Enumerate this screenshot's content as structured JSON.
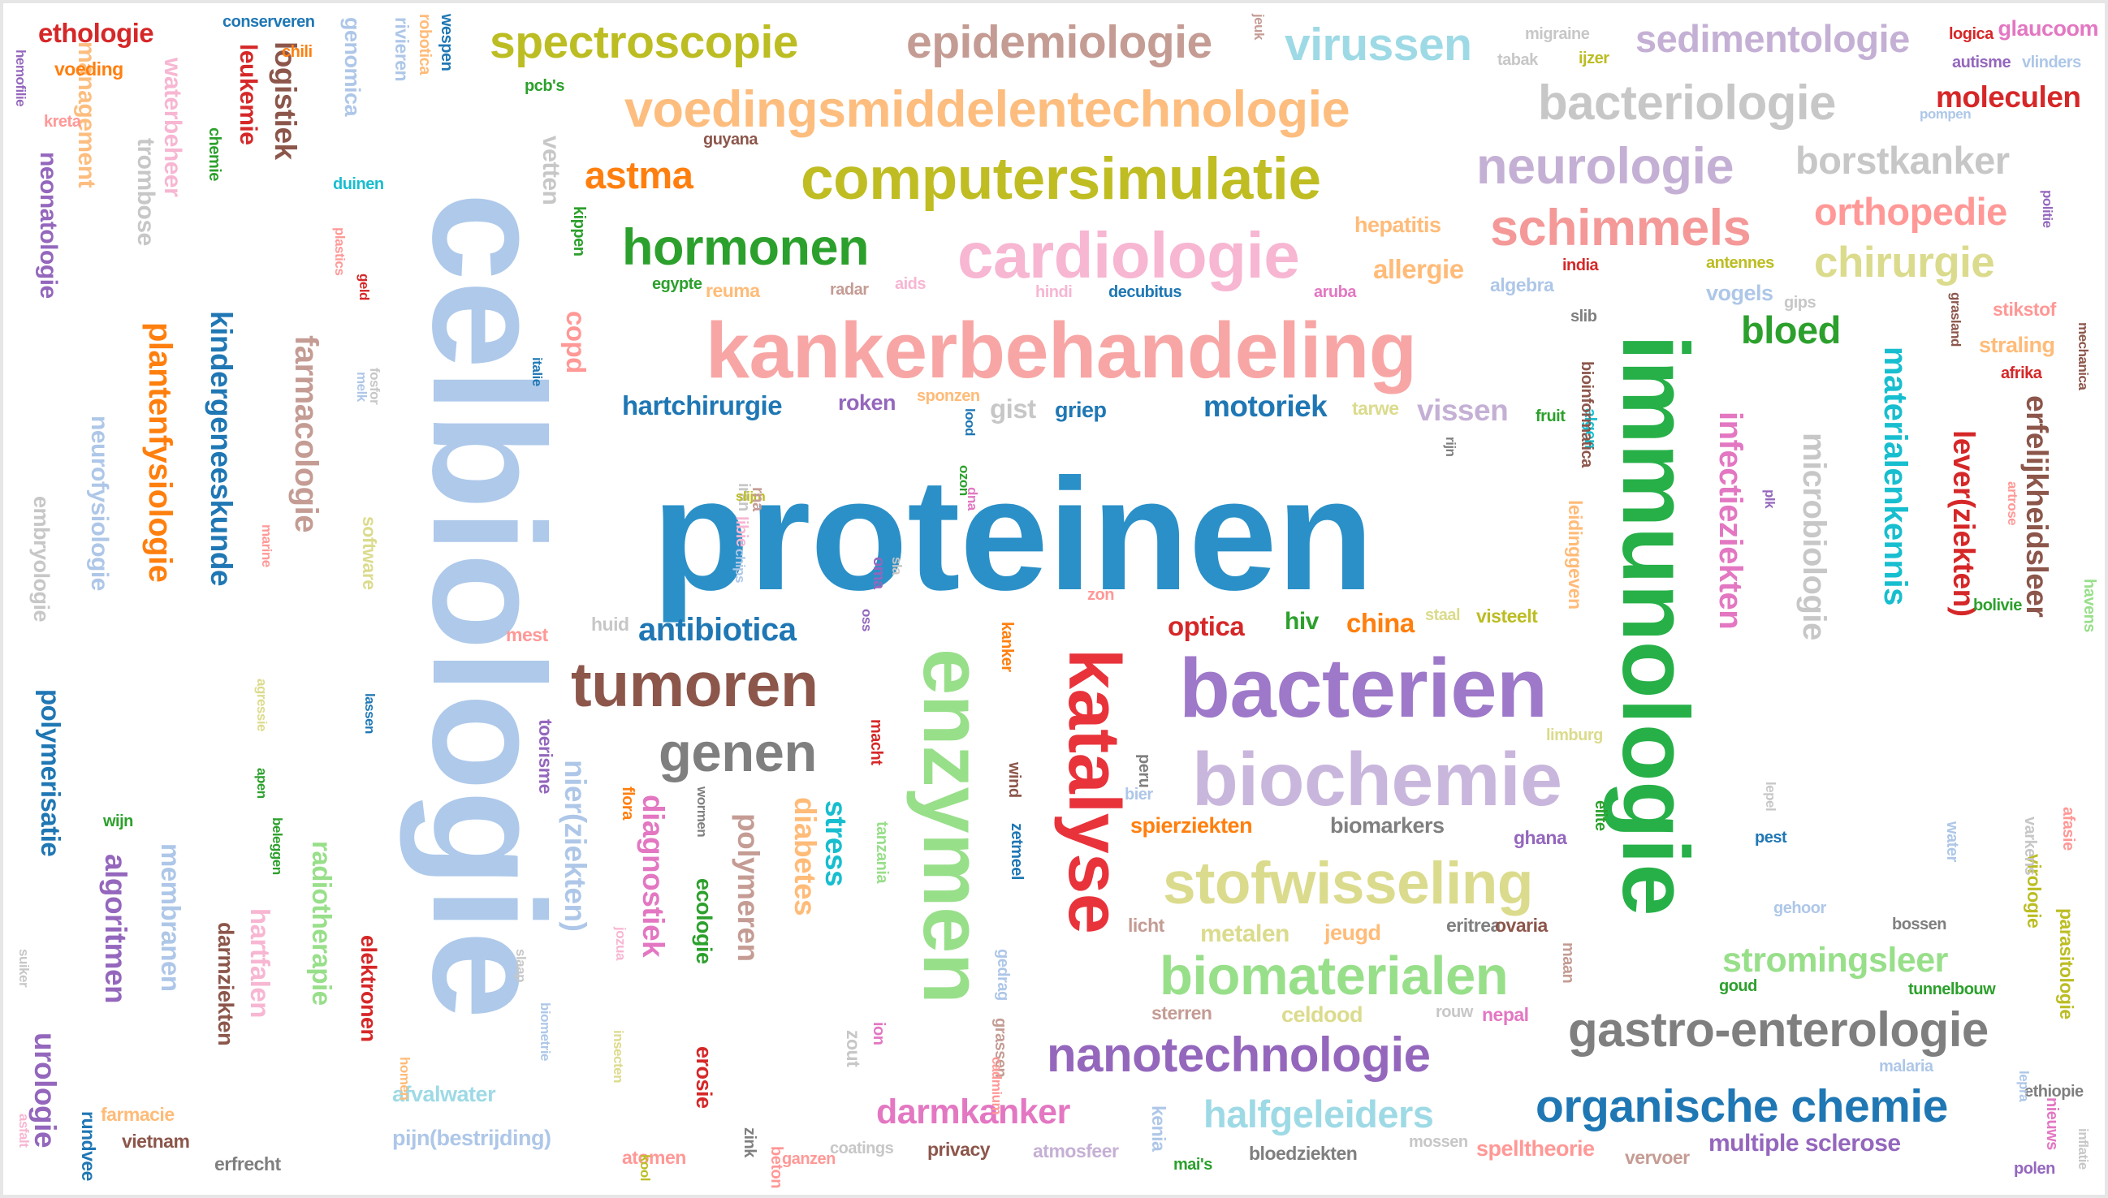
{
  "title": "",
  "words": [
    {
      "text": "proteinen",
      "color": "#2b90c8"
    },
    {
      "text": "celbiologie",
      "color": "#aec9ea"
    },
    {
      "text": "kankerbehandeling",
      "color": "#f7a6a5"
    },
    {
      "text": "immunologie",
      "color": "#27b048"
    },
    {
      "text": "enzymen",
      "color": "#98df8a"
    },
    {
      "text": "bacterien",
      "color": "#9e78c9"
    },
    {
      "text": "biochemie",
      "color": "#c9b6dc"
    },
    {
      "text": "katalyse",
      "color": "#e8333b"
    },
    {
      "text": "computersimulatie",
      "color": "#bfbd22"
    },
    {
      "text": "voedingsmiddelentechnologie",
      "color": "#fdbd7e"
    },
    {
      "text": "cardiologie",
      "color": "#f7b6d2"
    },
    {
      "text": "tumoren",
      "color": "#8c564b"
    },
    {
      "text": "stofwisseling",
      "color": "#dbdb8d"
    },
    {
      "text": "biomaterialen",
      "color": "#98df8a"
    },
    {
      "text": "nanotechnologie",
      "color": "#9467bd"
    },
    {
      "text": "gastro-enterologie",
      "color": "#7f7f7f"
    },
    {
      "text": "organische chemie",
      "color": "#1f77b4"
    },
    {
      "text": "genen",
      "color": "#7f7f7f"
    },
    {
      "text": "hormonen",
      "color": "#2ca02c"
    },
    {
      "text": "schimmels",
      "color": "#f49898"
    },
    {
      "text": "neurologie",
      "color": "#c5b0d5"
    },
    {
      "text": "bacteriologie",
      "color": "#c7c7c7"
    },
    {
      "text": "spectroscopie",
      "color": "#bcbd22"
    },
    {
      "text": "epidemiologie",
      "color": "#c49c94"
    },
    {
      "text": "virussen",
      "color": "#9edae5"
    },
    {
      "text": "sedimentologie",
      "color": "#c5b0d5"
    },
    {
      "text": "borstkanker",
      "color": "#c7c7c7"
    },
    {
      "text": "orthopedie",
      "color": "#ff9896"
    },
    {
      "text": "chirurgie",
      "color": "#dbdb8d"
    },
    {
      "text": "bloed",
      "color": "#2ca02c"
    },
    {
      "text": "moleculen",
      "color": "#d62728"
    },
    {
      "text": "astma",
      "color": "#ff7f0e"
    },
    {
      "text": "kindergeneeskunde",
      "color": "#1f77b4"
    },
    {
      "text": "plantenfysiologie",
      "color": "#ff7f0e"
    },
    {
      "text": "farmacologie",
      "color": "#c49c94"
    },
    {
      "text": "logistiek",
      "color": "#8c564b"
    },
    {
      "text": "leukemie",
      "color": "#d62728"
    },
    {
      "text": "neurofysiologie",
      "color": "#aec7e8"
    },
    {
      "text": "neonatologie",
      "color": "#9467bd"
    },
    {
      "text": "management",
      "color": "#fdbd7e"
    },
    {
      "text": "waterbeheer",
      "color": "#f7b6d2"
    },
    {
      "text": "materialenkennis",
      "color": "#17becf"
    },
    {
      "text": "infectieziekten",
      "color": "#e377c2"
    },
    {
      "text": "microbiologie",
      "color": "#c7c7c7"
    },
    {
      "text": "lever(ziekten)",
      "color": "#d62728"
    },
    {
      "text": "erfelijkheidsleer",
      "color": "#8c564b"
    },
    {
      "text": "nier(ziekten)",
      "color": "#aec7e8"
    },
    {
      "text": "diagnostiek",
      "color": "#e377c2"
    },
    {
      "text": "polymeren",
      "color": "#c49c94"
    },
    {
      "text": "diabetes",
      "color": "#ffbb78"
    },
    {
      "text": "stress",
      "color": "#17becf"
    },
    {
      "text": "copd",
      "color": "#ff9896"
    },
    {
      "text": "hartchirurgie",
      "color": "#1f77b4"
    },
    {
      "text": "antibiotica",
      "color": "#1f77b4"
    },
    {
      "text": "optica",
      "color": "#d62728"
    },
    {
      "text": "china",
      "color": "#ff7f0e"
    },
    {
      "text": "hiv",
      "color": "#2ca02c"
    },
    {
      "text": "motoriek",
      "color": "#1f77b4"
    },
    {
      "text": "vissen",
      "color": "#c5b0d5"
    },
    {
      "text": "gist",
      "color": "#c7c7c7"
    },
    {
      "text": "griep",
      "color": "#1f77b4"
    },
    {
      "text": "roken",
      "color": "#9467bd"
    },
    {
      "text": "tarwe",
      "color": "#dbdb8d"
    },
    {
      "text": "allergie",
      "color": "#ffbb78"
    },
    {
      "text": "hepatitis",
      "color": "#ffbb78"
    },
    {
      "text": "algebra",
      "color": "#aec7e8"
    },
    {
      "text": "vogels",
      "color": "#aec7e8"
    },
    {
      "text": "reuma",
      "color": "#ffbb78"
    },
    {
      "text": "radar",
      "color": "#c49c94"
    },
    {
      "text": "stikstof",
      "color": "#ff9896"
    },
    {
      "text": "straling",
      "color": "#ffbb78"
    },
    {
      "text": "afrika",
      "color": "#d62728"
    },
    {
      "text": "spierziekten",
      "color": "#ff7f0e"
    },
    {
      "text": "biomarkers",
      "color": "#7f7f7f"
    },
    {
      "text": "ghana",
      "color": "#9467bd"
    },
    {
      "text": "metalen",
      "color": "#dbdb8d"
    },
    {
      "text": "darmkanker",
      "color": "#e377c2"
    },
    {
      "text": "halfgeleiders",
      "color": "#9edae5"
    },
    {
      "text": "stromingsleer",
      "color": "#98df8a"
    },
    {
      "text": "multiple sclerose",
      "color": "#9467bd"
    },
    {
      "text": "bloedziekten",
      "color": "#7f7f7f"
    },
    {
      "text": "privacy",
      "color": "#8c564b"
    },
    {
      "text": "atmosfeer",
      "color": "#c5b0d5"
    },
    {
      "text": "pijn(bestrijding)",
      "color": "#aec7e8"
    },
    {
      "text": "afvalwater",
      "color": "#9edae5"
    },
    {
      "text": "spelltheorie",
      "color": "#ff9896"
    },
    {
      "text": "polymerisatie",
      "color": "#1f77b4"
    },
    {
      "text": "algoritmen",
      "color": "#9467bd"
    },
    {
      "text": "membranen",
      "color": "#aec7e8"
    },
    {
      "text": "urologie",
      "color": "#9467bd"
    },
    {
      "text": "hartfalen",
      "color": "#f7b6d2"
    },
    {
      "text": "radiotherapie",
      "color": "#98df8a"
    },
    {
      "text": "elektronen",
      "color": "#d62728"
    },
    {
      "text": "darmziekten",
      "color": "#8c564b"
    },
    {
      "text": "embryologie",
      "color": "#c7c7c7"
    },
    {
      "text": "ethologie",
      "color": "#d62728"
    },
    {
      "text": "voeding",
      "color": "#ff7f0e"
    },
    {
      "text": "glaucoom",
      "color": "#e377c2"
    },
    {
      "text": "logica",
      "color": "#d62728"
    },
    {
      "text": "autisme",
      "color": "#9467bd"
    },
    {
      "text": "migraine",
      "color": "#c7c7c7"
    },
    {
      "text": "ijzer",
      "color": "#bcbd22"
    },
    {
      "text": "celdood",
      "color": "#dbdb8d"
    },
    {
      "text": "sterren",
      "color": "#c49c94"
    },
    {
      "text": "nepal",
      "color": "#e377c2"
    },
    {
      "text": "parasitologie",
      "color": "#bcbd22"
    },
    {
      "text": "virologie",
      "color": "#bcbd22"
    },
    {
      "text": "tunnelbouw",
      "color": "#2ca02c"
    },
    {
      "text": "bossen",
      "color": "#7f7f7f"
    },
    {
      "text": "gehoor",
      "color": "#aec7e8"
    },
    {
      "text": "malaria",
      "color": "#aec7e8"
    },
    {
      "text": "atomen",
      "color": "#ff9896"
    },
    {
      "text": "vervoer",
      "color": "#c49c94"
    },
    {
      "text": "zetmeel",
      "color": "#1f77b4"
    },
    {
      "text": "wind",
      "color": "#8c564b"
    },
    {
      "text": "kanker",
      "color": "#ff7f0e"
    },
    {
      "text": "bier",
      "color": "#aec7e8"
    },
    {
      "text": "peru",
      "color": "#7f7f7f"
    },
    {
      "text": "visteelt",
      "color": "#bcbd22"
    },
    {
      "text": "staal",
      "color": "#dbdb8d"
    },
    {
      "text": "vetten",
      "color": "#c7c7c7"
    },
    {
      "text": "trombose",
      "color": "#c7c7c7"
    },
    {
      "text": "genomica",
      "color": "#aec7e8"
    },
    {
      "text": "rivieren",
      "color": "#aec7e8"
    },
    {
      "text": "conserveren",
      "color": "#1f77b4"
    },
    {
      "text": "chili",
      "color": "#ff7f0e"
    },
    {
      "text": "wespen",
      "color": "#1f77b4"
    },
    {
      "text": "robotica",
      "color": "#ffbb78"
    },
    {
      "text": "pcb's",
      "color": "#2ca02c"
    },
    {
      "text": "tabak",
      "color": "#c7c7c7"
    },
    {
      "text": "vlinders",
      "color": "#aec7e8"
    },
    {
      "text": "pompen",
      "color": "#aec7e8"
    },
    {
      "text": "politie",
      "color": "#9467bd"
    },
    {
      "text": "antennes",
      "color": "#bcbd22"
    },
    {
      "text": "gips",
      "color": "#c7c7c7"
    },
    {
      "text": "india",
      "color": "#d62728"
    },
    {
      "text": "aruba",
      "color": "#e377c2"
    },
    {
      "text": "decubitus",
      "color": "#1f77b4"
    },
    {
      "text": "hindi",
      "color": "#f7b6d2"
    },
    {
      "text": "aids",
      "color": "#f7b6d2"
    },
    {
      "text": "egypte",
      "color": "#2ca02c"
    },
    {
      "text": "kippen",
      "color": "#2ca02c"
    },
    {
      "text": "duinen",
      "color": "#17becf"
    },
    {
      "text": "chemie",
      "color": "#2ca02c"
    },
    {
      "text": "hemofilie",
      "color": "#9467bd"
    },
    {
      "text": "kreta",
      "color": "#ff9896"
    },
    {
      "text": "guyana",
      "color": "#8c564b"
    },
    {
      "text": "slib",
      "color": "#7f7f7f"
    },
    {
      "text": "fruit",
      "color": "#2ca02c"
    },
    {
      "text": "algen",
      "color": "#17becf"
    },
    {
      "text": "mechanica",
      "color": "#8c564b"
    },
    {
      "text": "grasland",
      "color": "#8c564b"
    },
    {
      "text": "havens",
      "color": "#98df8a"
    },
    {
      "text": "sponzen",
      "color": "#ffbb78"
    },
    {
      "text": "rijn",
      "color": "#7f7f7f"
    },
    {
      "text": "ozon",
      "color": "#2ca02c"
    },
    {
      "text": "zon",
      "color": "#ff9896"
    },
    {
      "text": "mest",
      "color": "#ff9896"
    },
    {
      "text": "huid",
      "color": "#c7c7c7"
    },
    {
      "text": "software",
      "color": "#dbdb8d"
    },
    {
      "text": "marine",
      "color": "#ff9896"
    },
    {
      "text": "melk",
      "color": "#aec7e8"
    },
    {
      "text": "lassen",
      "color": "#1f77b4"
    },
    {
      "text": "apen",
      "color": "#2ca02c"
    },
    {
      "text": "wijn",
      "color": "#2ca02c"
    },
    {
      "text": "beleggen",
      "color": "#2ca02c"
    },
    {
      "text": "toerisme",
      "color": "#9467bd"
    },
    {
      "text": "flora",
      "color": "#ff7f0e"
    },
    {
      "text": "limburg",
      "color": "#dbdb8d"
    },
    {
      "text": "elite",
      "color": "#2ca02c"
    },
    {
      "text": "licht",
      "color": "#c49c94"
    },
    {
      "text": "jeugd",
      "color": "#ffbb78"
    },
    {
      "text": "eritrea",
      "color": "#7f7f7f"
    },
    {
      "text": "ovaria",
      "color": "#8c564b"
    },
    {
      "text": "rouw",
      "color": "#c7c7c7"
    },
    {
      "text": "maan",
      "color": "#c49c94"
    },
    {
      "text": "goud",
      "color": "#2ca02c"
    },
    {
      "text": "ethiopie",
      "color": "#7f7f7f"
    },
    {
      "text": "polen",
      "color": "#9467bd"
    },
    {
      "text": "mossen",
      "color": "#c7c7c7"
    },
    {
      "text": "mai's",
      "color": "#2ca02c"
    },
    {
      "text": "coatings",
      "color": "#c7c7c7"
    },
    {
      "text": "ganzen",
      "color": "#ff9896"
    },
    {
      "text": "beton",
      "color": "#ff9896"
    },
    {
      "text": "zink",
      "color": "#7f7f7f"
    },
    {
      "text": "erosie",
      "color": "#d62728"
    },
    {
      "text": "ecologie",
      "color": "#2ca02c"
    },
    {
      "text": "erfrecht",
      "color": "#7f7f7f"
    },
    {
      "text": "vietnam",
      "color": "#8c564b"
    },
    {
      "text": "farmacie",
      "color": "#ffbb78"
    },
    {
      "text": "rundvee",
      "color": "#1f77b4"
    },
    {
      "text": "suiker",
      "color": "#c7c7c7"
    },
    {
      "text": "kenia",
      "color": "#aec7e8"
    },
    {
      "text": "grassen",
      "color": "#c49c94"
    },
    {
      "text": "gedrag",
      "color": "#aec7e8"
    },
    {
      "text": "tanzania",
      "color": "#98df8a"
    },
    {
      "text": "macht",
      "color": "#d62728"
    },
    {
      "text": "wormen",
      "color": "#7f7f7f"
    },
    {
      "text": "oss",
      "color": "#9467bd"
    },
    {
      "text": "pest",
      "color": "#1f77b4"
    },
    {
      "text": "water",
      "color": "#aec7e8"
    },
    {
      "text": "varkens",
      "color": "#c7c7c7"
    },
    {
      "text": "afasie",
      "color": "#ff9896"
    },
    {
      "text": "leidinggeven",
      "color": "#ffbb78"
    },
    {
      "text": "artrose",
      "color": "#ff9896"
    },
    {
      "text": "jeuk",
      "color": "#c49c94"
    },
    {
      "text": "nieuws",
      "color": "#e377c2"
    },
    {
      "text": "lepra",
      "color": "#aec7e8"
    },
    {
      "text": "inflatie",
      "color": "#c7c7c7"
    },
    {
      "text": "bioinformatica",
      "color": "#8c564b"
    },
    {
      "text": "bolivie",
      "color": "#2ca02c"
    },
    {
      "text": "italie",
      "color": "#1f77b4"
    },
    {
      "text": "fosfor",
      "color": "#c7c7c7"
    },
    {
      "text": "plastics",
      "color": "#ff9896"
    },
    {
      "text": "geld",
      "color": "#d62728"
    },
    {
      "text": "homen",
      "color": "#ffbb78"
    },
    {
      "text": "biometrie",
      "color": "#aec7e8"
    },
    {
      "text": "insecten",
      "color": "#dbdb8d"
    },
    {
      "text": "agressie",
      "color": "#dbdb8d"
    },
    {
      "text": "asfalt",
      "color": "#f7b6d2"
    },
    {
      "text": "jozua",
      "color": "#f7b6d2"
    },
    {
      "text": "slaap",
      "color": "#c7c7c7"
    },
    {
      "text": "lood",
      "color": "#1f77b4"
    },
    {
      "text": "libie",
      "color": "#f7b6d2"
    },
    {
      "text": "iran",
      "color": "#c7c7c7"
    },
    {
      "text": "chips",
      "color": "#aec7e8"
    },
    {
      "text": "slijm",
      "color": "#bcbd22"
    },
    {
      "text": "oma",
      "color": "#9467bd"
    },
    {
      "text": "sla",
      "color": "#c7c7c7"
    },
    {
      "text": "rna",
      "color": "#c49c94"
    },
    {
      "text": "dna",
      "color": "#e377c2"
    },
    {
      "text": "kool",
      "color": "#bcbd22"
    },
    {
      "text": "zout",
      "color": "#c7c7c7"
    },
    {
      "text": "ion",
      "color": "#e377c2"
    },
    {
      "text": "cadmium",
      "color": "#ff9896"
    },
    {
      "text": "plk",
      "color": "#9467bd"
    },
    {
      "text": "lepel",
      "color": "#c7c7c7"
    },
    {
      "text": "cel",
      "color": "#1f77b4"
    },
    {
      "text": "suelhose",
      "color": "#f7b6d2"
    }
  ]
}
